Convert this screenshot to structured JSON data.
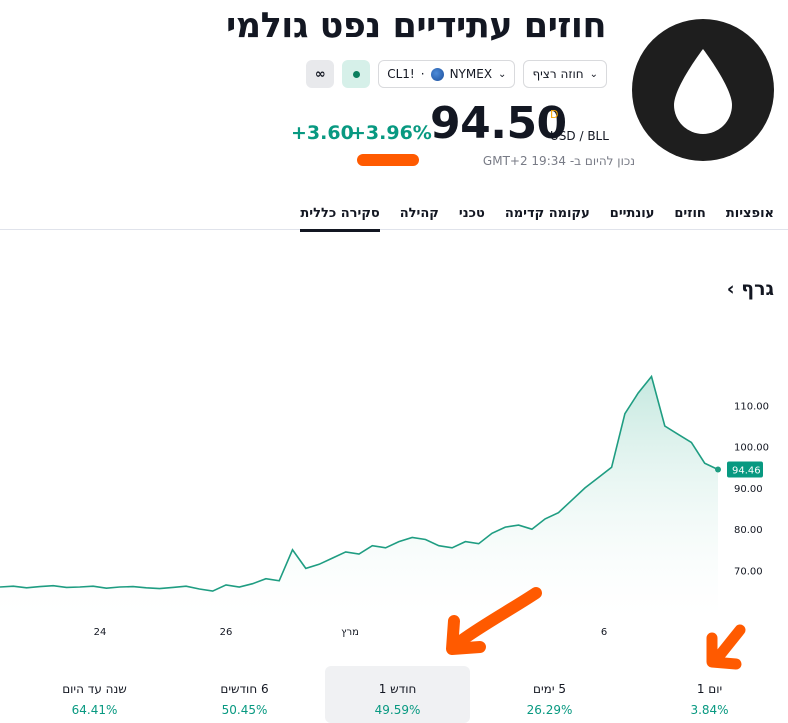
{
  "header": {
    "title": "חוזים עתידיים נפט גולמי",
    "logo_icon": "oil-drop-icon",
    "chips": {
      "contract": "חוזה רציף",
      "symbol": "CL1!",
      "exchange": "NYMEX",
      "separator": "·",
      "infinity": "∞"
    },
    "price": "94.50",
    "currency_sup": "D",
    "currency": "USD / BLL",
    "change_abs": "+3.60",
    "change_pct": "+3.96%",
    "as_of": "נכון להיום ב- 19:34 GMT+2"
  },
  "tabs": [
    "סקירה כללית",
    "קהילה",
    "טכני",
    "עקומה קדימה",
    "עונתיים",
    "חוזים",
    "אופציות"
  ],
  "section": {
    "title": "גרף ›"
  },
  "chart_data": {
    "type": "area",
    "x_ticks": [
      "24",
      "26",
      "מרץ",
      "6"
    ],
    "y_ticks": [
      "110.00",
      "100.00",
      "90.00",
      "80.00",
      "70.00"
    ],
    "ylim": [
      58,
      121
    ],
    "last_value": "94.46",
    "series": [
      {
        "values": [
          66,
          66.2,
          65.8,
          66.1,
          66.3,
          65.9,
          66.0,
          66.2,
          65.7,
          66.0,
          66.1,
          65.8,
          65.6,
          65.9,
          66.2,
          65.5,
          65.0,
          66.5,
          66.0,
          66.8,
          68.0,
          67.5,
          75.0,
          70.5,
          71.5,
          73.0,
          74.5,
          74.0,
          76.0,
          75.5,
          77.0,
          78.0,
          77.5,
          76.0,
          75.5,
          77.0,
          76.5,
          79.0,
          80.5,
          81.0,
          80.0,
          82.5,
          84.0,
          87.0,
          90.0,
          92.5,
          95.0,
          108.0,
          113.0,
          117.0,
          105.0,
          103.0,
          101.0,
          96.0,
          94.46
        ]
      }
    ],
    "colors": {
      "line": "#1f9d82",
      "fill_top": "#bfe6dc",
      "label_bg": "#089981"
    }
  },
  "periods": [
    {
      "label": "יום 1",
      "value": "3.84%"
    },
    {
      "label": "5 ימים",
      "value": "26.29%"
    },
    {
      "label": "חודש 1",
      "value": "49.59%"
    },
    {
      "label": "6 חודשים",
      "value": "50.45%"
    },
    {
      "label": "שנה עד היום",
      "value": "64.41%"
    }
  ],
  "annotation_color": "#ff5a00"
}
